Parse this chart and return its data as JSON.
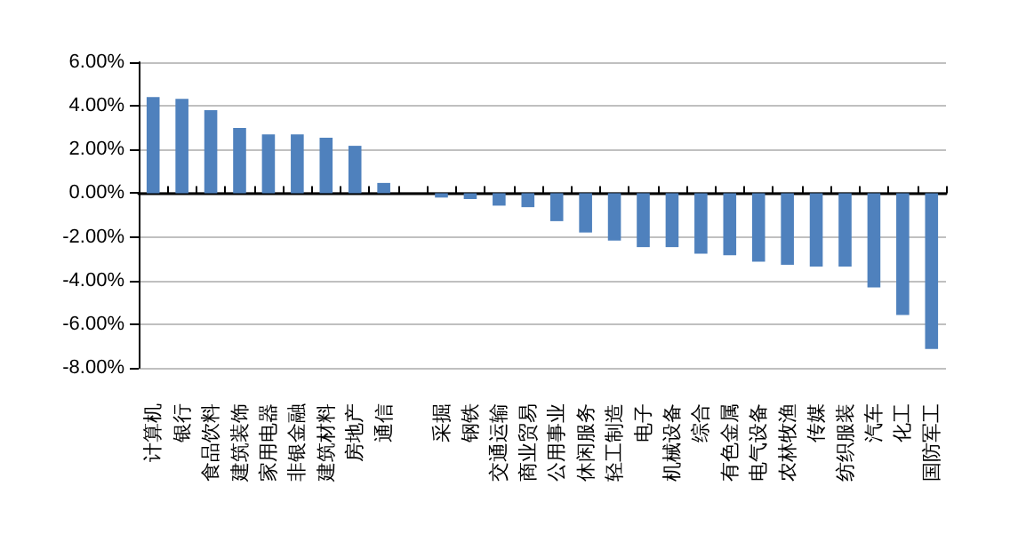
{
  "chart_data": {
    "type": "bar",
    "categories": [
      "计算机",
      "银行",
      "食品饮料",
      "建筑装饰",
      "家用电器",
      "非银金融",
      "建筑材料",
      "房地产",
      "通信",
      null,
      "采掘",
      "钢铁",
      "交通运输",
      "商业贸易",
      "公用事业",
      "休闲服务",
      "轻工制造",
      "电子",
      "机械设备",
      "综合",
      "有色金属",
      "电气设备",
      "农林牧渔",
      "传媒",
      "纺织服装",
      "汽车",
      "化工",
      "国防军工"
    ],
    "values": [
      4.4,
      4.32,
      3.8,
      2.99,
      2.69,
      2.69,
      2.54,
      2.17,
      0.47,
      0,
      -0.2,
      -0.27,
      -0.57,
      -0.64,
      -1.28,
      -1.8,
      -2.17,
      -2.47,
      -2.47,
      -2.77,
      -2.84,
      -3.14,
      -3.28,
      -3.36,
      -3.36,
      -4.32,
      -5.58,
      -7.14
    ],
    "color": "#4f81bd",
    "ylim": [
      -8,
      6
    ],
    "yticks": [
      {
        "value": -8,
        "label": "-8.00%"
      },
      {
        "value": -6,
        "label": "-6.00%"
      },
      {
        "value": -4,
        "label": "-4.00%"
      },
      {
        "value": -2,
        "label": "-2.00%"
      },
      {
        "value": 0,
        "label": "0.00%"
      },
      {
        "value": 2,
        "label": "2.00%"
      },
      {
        "value": 4,
        "label": "4.00%"
      },
      {
        "value": 6,
        "label": "6.00%"
      }
    ],
    "grid": "y"
  }
}
